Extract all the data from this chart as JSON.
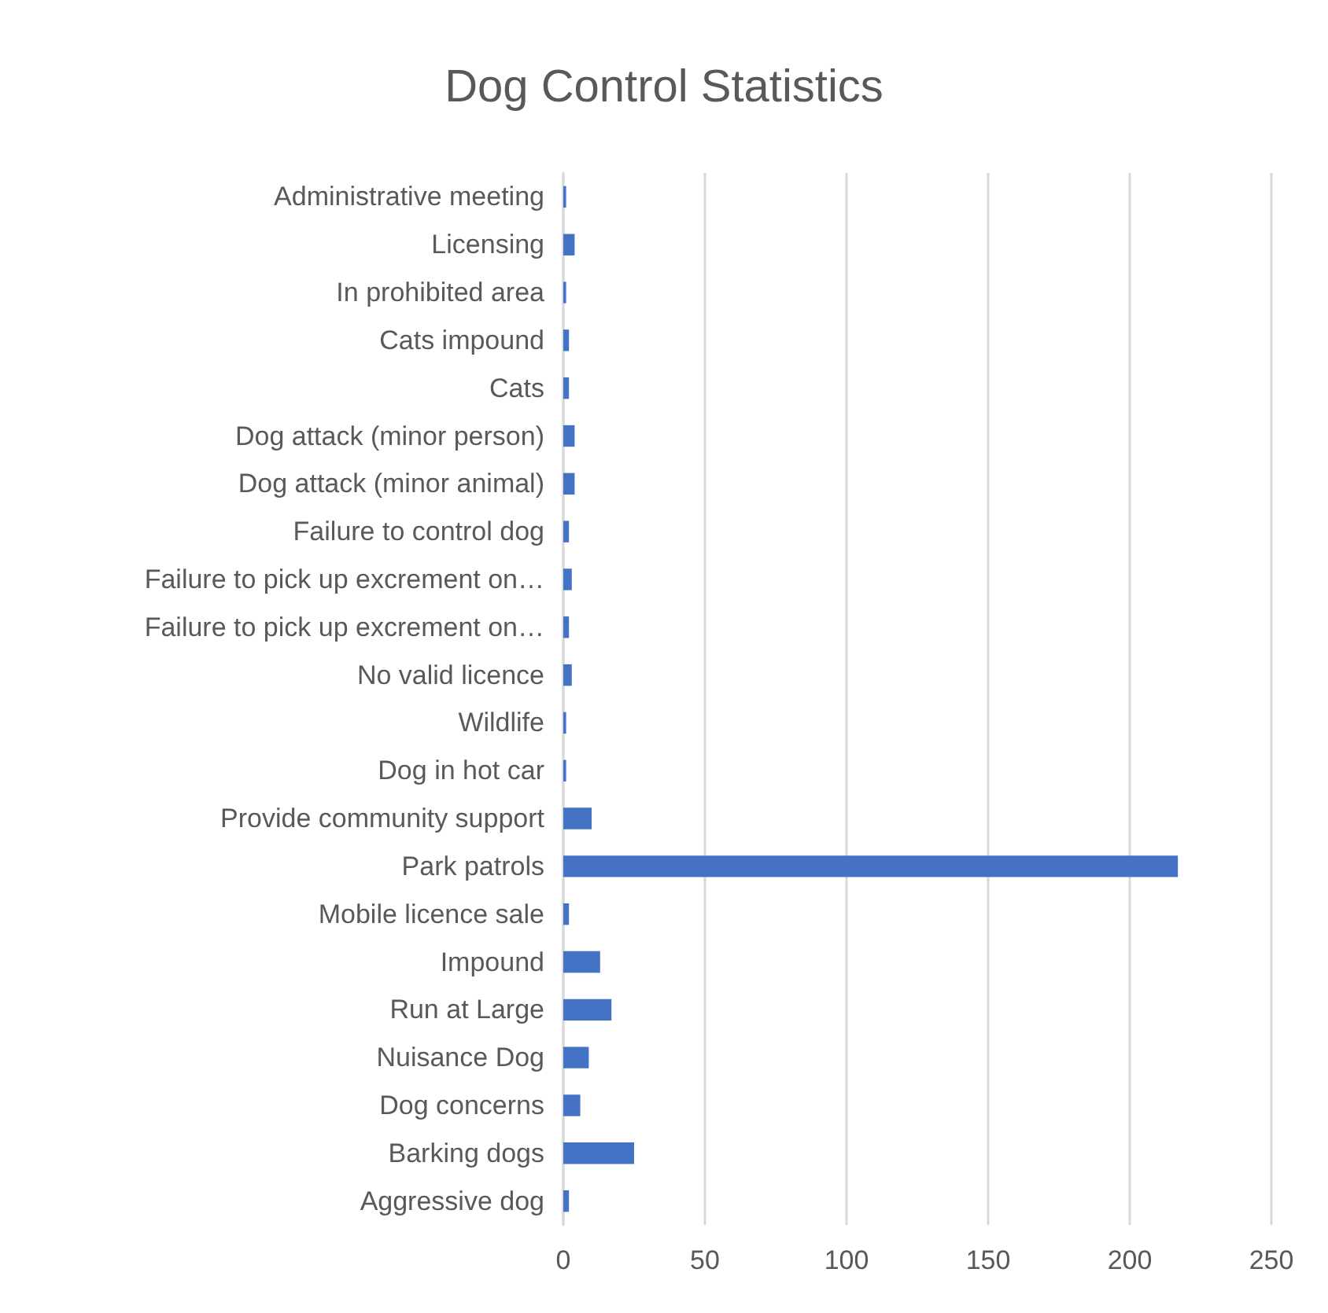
{
  "chart_data": {
    "type": "bar",
    "orientation": "horizontal",
    "title": "Dog Control Statistics",
    "categories": [
      "Administrative meeting",
      "Licensing",
      "In prohibited area",
      "Cats impound",
      "Cats",
      "Dog attack (minor person)",
      "Dog attack (minor animal)",
      "Failure to control dog",
      "Failure to pick up excrement on…",
      "Failure to pick up excrement on…",
      "No valid licence",
      "Wildlife",
      "Dog in hot car",
      "Provide community support",
      "Park patrols",
      "Mobile licence sale",
      "Impound",
      "Run at Large",
      "Nuisance Dog",
      "Dog concerns",
      "Barking dogs",
      "Aggressive dog"
    ],
    "values": [
      1,
      4,
      1,
      2,
      2,
      4,
      4,
      2,
      3,
      2,
      3,
      1,
      1,
      10,
      217,
      2,
      13,
      17,
      9,
      6,
      25,
      2
    ],
    "color": "#4472c4",
    "xlim": [
      0,
      250
    ],
    "xticks": [
      0,
      50,
      100,
      150,
      200,
      250
    ],
    "grid": "x"
  }
}
